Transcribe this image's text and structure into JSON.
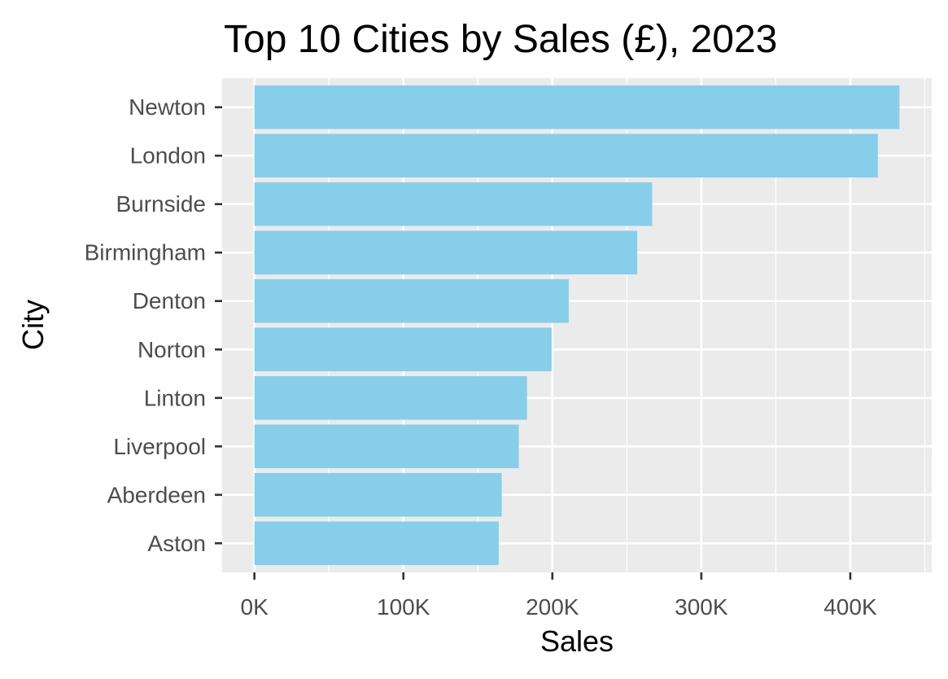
{
  "chart_data": {
    "type": "bar",
    "orientation": "horizontal",
    "title": "Top 10 Cities by Sales (£), 2023",
    "xlabel": "Sales",
    "ylabel": "City",
    "categories": [
      "Newton",
      "London",
      "Burnside",
      "Birmingham",
      "Denton",
      "Norton",
      "Linton",
      "Liverpool",
      "Aberdeen",
      "Aston"
    ],
    "values": [
      433000,
      418500,
      267000,
      257000,
      211000,
      199500,
      183000,
      177500,
      166000,
      164000
    ],
    "xticks": [
      0,
      100000,
      200000,
      300000,
      400000
    ],
    "xtick_labels": [
      "0K",
      "100K",
      "200K",
      "300K",
      "400K"
    ],
    "xlim": [
      -21650,
      454650
    ],
    "grid": true,
    "legend": "none",
    "colors": {
      "bar": "#87CEEB",
      "panel_background": "#EBEBEB",
      "grid": "#FFFFFF",
      "tick_text": "#4D4D4D",
      "tick_mark": "#333333",
      "title_text": "#000000"
    }
  }
}
